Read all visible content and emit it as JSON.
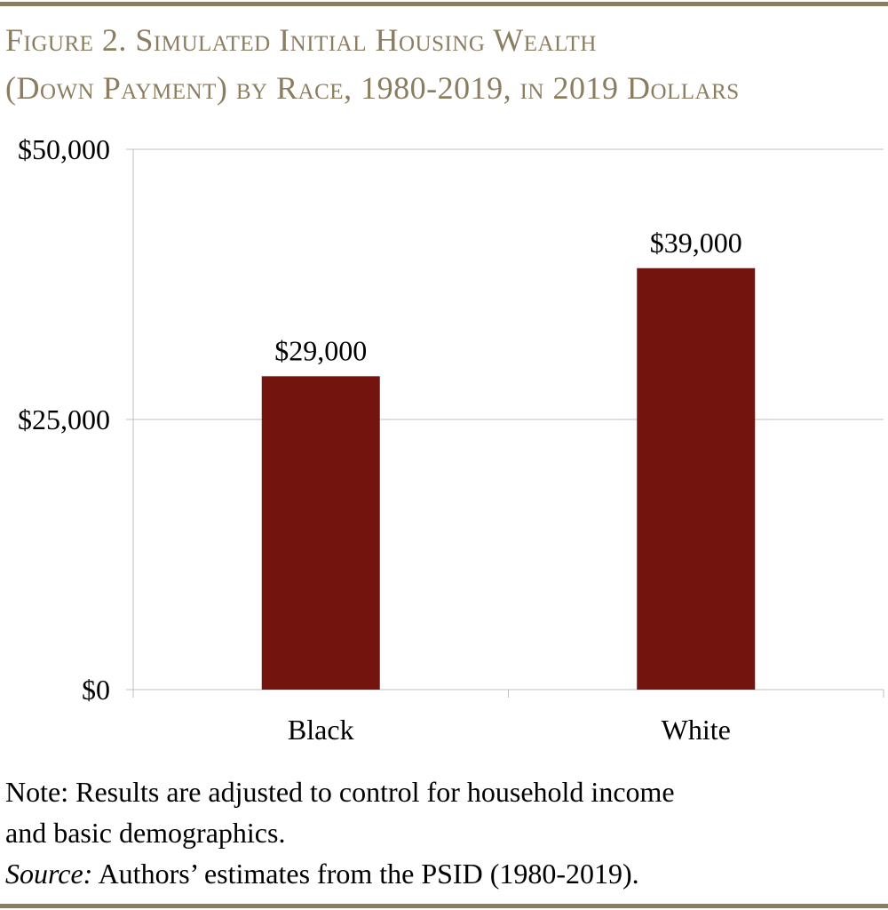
{
  "title_line1": "Figure 2. Simulated Initial Housing Wealth",
  "title_line2": "(Down Payment) by Race, 1980-2019, in 2019 Dollars",
  "note_line1": "Note: Results are adjusted to control for household income",
  "note_line2": "and basic demographics.",
  "source_label": "Source:",
  "source_text": " Authors’ estimates from the PSID (1980-2019).",
  "colors": {
    "bar": "#74140F",
    "rule": "#8B7D60",
    "title": "#8B7D60",
    "grid": "#BFBFBF"
  },
  "chart_data": {
    "type": "bar",
    "categories": [
      "Black",
      "White"
    ],
    "values": [
      29000,
      39000
    ],
    "data_labels": [
      "$29,000",
      "$39,000"
    ],
    "ylim": [
      0,
      50000
    ],
    "yticks": [
      0,
      25000,
      50000
    ],
    "ytick_labels": [
      "$0",
      "$25,000",
      "$50,000"
    ],
    "grid": true,
    "legend": "none"
  }
}
